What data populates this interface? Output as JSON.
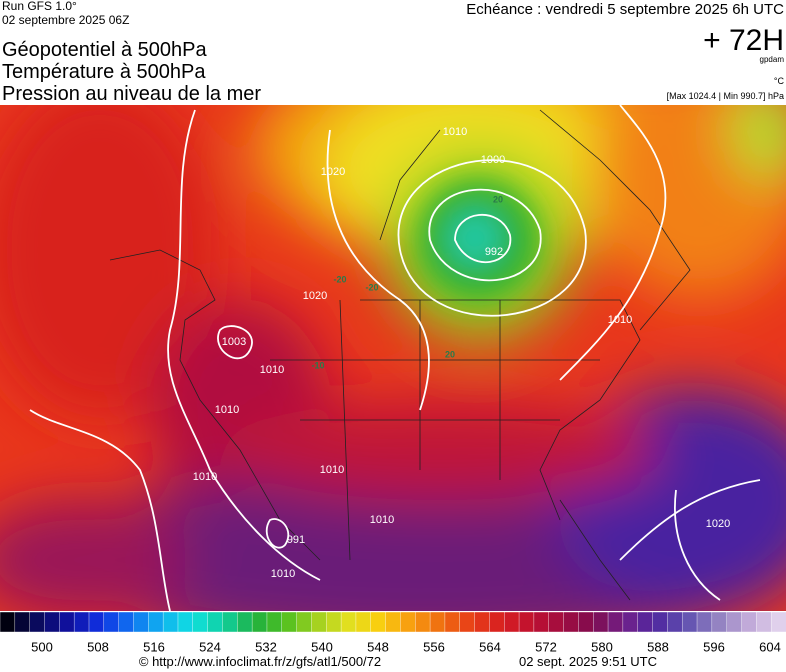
{
  "header": {
    "run": "Run GFS 1.0°",
    "date": "02 septembre 2025 06Z",
    "titles": [
      "Géopotentiel à 500hPa",
      "Température à 500hPa",
      "Pression au niveau de la mer"
    ],
    "echeance": "Echéance : vendredi 5 septembre 2025 6h UTC",
    "lead": "+ 72H",
    "unit_gpdam": "gpdam",
    "unit_c": "°C",
    "pressure_range": "[Max 1024.4 | Min 990.7] hPa"
  },
  "colorbar": {
    "ticks": [
      500,
      508,
      516,
      524,
      532,
      540,
      548,
      556,
      564,
      572,
      580,
      588,
      596,
      604
    ]
  },
  "map": {
    "labels": [
      "992",
      "1000",
      "1010",
      "1020",
      "1020",
      "1003",
      "1010",
      "1010",
      "1010",
      "1010",
      "1010",
      "991",
      "1010",
      "1020",
      "1010",
      "-20",
      "-20",
      "20",
      "20",
      "-10"
    ]
  },
  "footer": {
    "url": "© http://www.infoclimat.fr/z/gfs/atl1/500/72",
    "timestamp": "02 sept. 2025  9:51 UTC"
  }
}
